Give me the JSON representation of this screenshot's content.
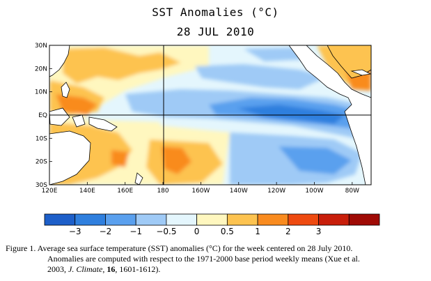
{
  "title": "SST Anomalies (°C)",
  "date": "28 JUL 2010",
  "map": {
    "lat_labels": [
      "30N",
      "20N",
      "10N",
      "EQ",
      "10S",
      "20S",
      "30S"
    ],
    "lon_labels": [
      "120E",
      "140E",
      "160E",
      "180",
      "160W",
      "140W",
      "120W",
      "100W",
      "80W"
    ],
    "lat_range": [
      -30,
      30
    ],
    "lon_range_east": [
      120,
      290
    ],
    "crosshair": {
      "lat": 0,
      "lon_east": 180
    }
  },
  "colorbar": {
    "colors": [
      "#1d5fc9",
      "#2f7fde",
      "#5aa0ee",
      "#9fcaf6",
      "#e4f6fd",
      "#fff7bf",
      "#fdc350",
      "#f98b1f",
      "#ee4a10",
      "#c81e0a",
      "#9f0a05"
    ],
    "labels": [
      "−3",
      "−2",
      "−1",
      "−0.5",
      "0",
      "0.5",
      "1",
      "2",
      "3"
    ]
  },
  "caption": {
    "line1": "Figure 1. Average sea surface temperature (SST) anomalies (°C) for the week centered on 28 July 2010.",
    "line2": "Anomalies are computed with respect to the 1971-2000 base period weekly means (Xue et al.",
    "line3_pre": "2003,",
    "journal": "J. Climate",
    "volume": "16",
    "line3_post": ", 1601-1612)."
  }
}
